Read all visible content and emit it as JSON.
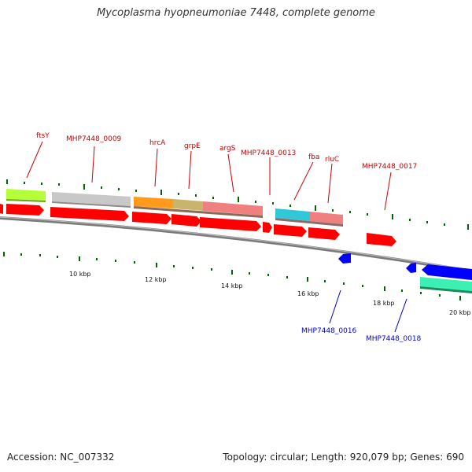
{
  "title": "Mycoplasma hyopneumoniae 7448, complete genome",
  "footer": {
    "accession": "Accession: NC_007332",
    "summary": "Topology: circular; Length: 920,079 bp; Genes: 690"
  },
  "colors": {
    "cds": "#ff0000",
    "rna": "#0000ff",
    "backbone": "#808080",
    "tick": "#006400",
    "gene_label_forward": "#cc0000",
    "gene_label_reverse": "#0000cc"
  },
  "scale_labels": [
    "10 kbp",
    "12 kbp",
    "14 kbp",
    "16 kbp",
    "18 kbp",
    "20 kbp"
  ],
  "gene_labels_forward": [
    "ftsY",
    "MHP7448_0009",
    "hrcA",
    "grpE",
    "argS",
    "MHP7448_0013",
    "fba",
    "rluC",
    "MHP7448_0017"
  ],
  "gene_labels_reverse": [
    "MHP7448_0016",
    "MHP7448_0018"
  ]
}
